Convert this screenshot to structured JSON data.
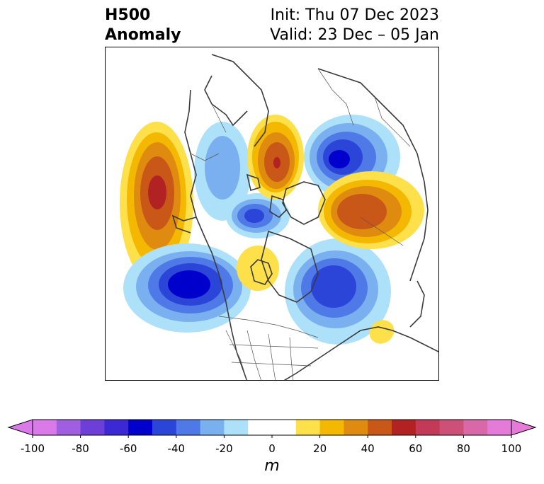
{
  "title": {
    "variable": "H500",
    "kind": "Anomaly",
    "init": "Init: Thu 07 Dec 2023",
    "valid": "Valid: 23 Dec – 05 Jan"
  },
  "colorbar": {
    "unit": "m",
    "min": -100,
    "max": 100,
    "step": 10,
    "extend": "both",
    "tick_labels": [
      "-100",
      "-80",
      "-60",
      "-40",
      "-20",
      "0",
      "20",
      "40",
      "60",
      "80",
      "100"
    ],
    "colors": [
      "#d97ae8",
      "#a05ee0",
      "#6c3fd8",
      "#3d28d6",
      "#0000cd",
      "#2b45d8",
      "#4f79e6",
      "#7ab0f0",
      "#ade1fa",
      "#ffffff",
      "#ffffff",
      "#fde04a",
      "#f4b800",
      "#df8b10",
      "#c85718",
      "#b22222",
      "#c23a58",
      "#cc5078",
      "#d868a8",
      "#e67ad8"
    ]
  },
  "map": {
    "projection": "north-polar stereographic",
    "anomaly_centers": [
      {
        "region": "central North Pacific",
        "sign": "positive",
        "peak_m": 65
      },
      {
        "region": "Gulf of Alaska / NE Pacific",
        "sign": "negative",
        "peak_m": -70
      },
      {
        "region": "western Canada / Yukon",
        "sign": "negative",
        "peak_m": -25
      },
      {
        "region": "Beaufort Sea",
        "sign": "negative",
        "peak_m": -55
      },
      {
        "region": "northern Hudson Bay / Baffin",
        "sign": "positive",
        "peak_m": 15
      },
      {
        "region": "eastern Canada / Labrador",
        "sign": "negative",
        "peak_m": -65
      },
      {
        "region": "central Atlantic",
        "sign": "positive",
        "peak_m": 15
      },
      {
        "region": "Scandinavia / Kara Sea",
        "sign": "positive",
        "peak_m": 55
      },
      {
        "region": "eastern Siberia / Laptev Sea",
        "sign": "negative",
        "peak_m": -60
      },
      {
        "region": "Siberia / Okhotsk",
        "sign": "positive",
        "peak_m": 65
      }
    ]
  }
}
